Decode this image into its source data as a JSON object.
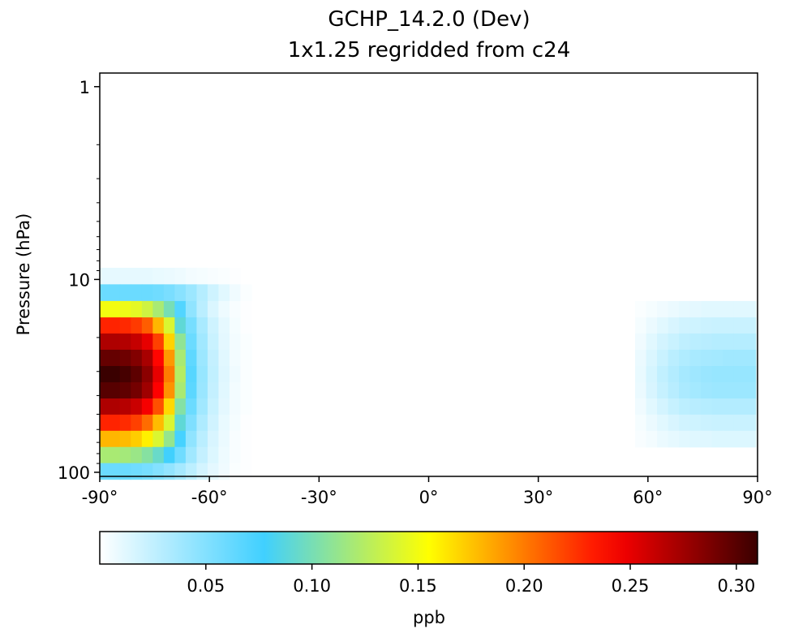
{
  "chart_data": {
    "type": "heatmap",
    "title": "GCHP_14.2.0 (Dev)",
    "subtitle": "1x1.25 regridded from c24",
    "ylabel": "Pressure (hPa)",
    "xlabel": "",
    "y_scale": "log",
    "y_inverted": true,
    "xlim": [
      -90,
      90
    ],
    "ylim": [
      105,
      0.85
    ],
    "x_ticks": [
      -90,
      -60,
      -30,
      0,
      30,
      60,
      90
    ],
    "x_tick_labels": [
      "-90°",
      "-60°",
      "-30°",
      "0°",
      "30°",
      "60°",
      "90°"
    ],
    "y_ticks": [
      1,
      10,
      100
    ],
    "y_tick_labels": [
      "1",
      "10",
      "100"
    ],
    "pressure_levels_hPa": [
      9.6,
      11.7,
      14.3,
      17.3,
      21.0,
      25.5,
      31.0,
      37.6,
      45.6,
      55.3,
      67.1,
      81.4,
      98.7
    ],
    "latitude_centers_deg": [
      -89,
      -86,
      -83,
      -80,
      -77,
      -74,
      -71,
      -68,
      -65,
      -62,
      -59,
      -56,
      -53,
      -50,
      -47,
      -44,
      -41,
      58,
      61,
      64,
      67,
      70,
      73,
      76,
      79,
      82,
      85,
      88
    ],
    "values_ppb": [
      [
        0.01,
        0.01,
        0.01,
        0.01,
        0.01,
        0.009,
        0.008,
        0.007,
        0.005,
        0.004,
        0.003,
        0.002,
        0.001,
        0.0,
        0.0,
        0.0,
        0.0,
        0.0,
        0.0,
        0.0,
        0.0,
        0.0,
        0.0,
        0.0,
        0.0,
        0.0,
        0.0,
        0.0
      ],
      [
        0.06,
        0.06,
        0.06,
        0.06,
        0.06,
        0.058,
        0.054,
        0.048,
        0.04,
        0.03,
        0.02,
        0.012,
        0.006,
        0.002,
        0.0,
        0.0,
        0.0,
        0.0,
        0.0,
        0.0,
        0.0,
        0.0,
        0.0,
        0.0,
        0.0,
        0.0,
        0.0,
        0.0
      ],
      [
        0.15,
        0.15,
        0.148,
        0.144,
        0.135,
        0.12,
        0.1,
        0.07,
        0.045,
        0.028,
        0.015,
        0.007,
        0.003,
        0.001,
        0.0,
        0.0,
        0.0,
        0.002,
        0.004,
        0.006,
        0.008,
        0.01,
        0.011,
        0.012,
        0.012,
        0.012,
        0.012,
        0.012
      ],
      [
        0.23,
        0.23,
        0.228,
        0.222,
        0.21,
        0.18,
        0.14,
        0.09,
        0.055,
        0.035,
        0.02,
        0.01,
        0.004,
        0.001,
        0.0,
        0.0,
        0.0,
        0.004,
        0.008,
        0.012,
        0.016,
        0.019,
        0.02,
        0.021,
        0.022,
        0.022,
        0.022,
        0.022
      ],
      [
        0.27,
        0.27,
        0.268,
        0.262,
        0.25,
        0.22,
        0.17,
        0.11,
        0.06,
        0.038,
        0.022,
        0.011,
        0.005,
        0.002,
        0.0,
        0.0,
        0.0,
        0.006,
        0.012,
        0.018,
        0.022,
        0.026,
        0.028,
        0.029,
        0.03,
        0.03,
        0.03,
        0.03
      ],
      [
        0.295,
        0.295,
        0.292,
        0.285,
        0.272,
        0.24,
        0.19,
        0.12,
        0.065,
        0.04,
        0.024,
        0.012,
        0.005,
        0.002,
        0.0,
        0.0,
        0.0,
        0.008,
        0.015,
        0.022,
        0.028,
        0.032,
        0.035,
        0.036,
        0.037,
        0.038,
        0.038,
        0.038
      ],
      [
        0.31,
        0.31,
        0.306,
        0.298,
        0.282,
        0.25,
        0.2,
        0.125,
        0.068,
        0.042,
        0.025,
        0.013,
        0.006,
        0.002,
        0.0,
        0.0,
        0.0,
        0.009,
        0.017,
        0.025,
        0.031,
        0.036,
        0.039,
        0.041,
        0.042,
        0.042,
        0.042,
        0.042
      ],
      [
        0.3,
        0.3,
        0.297,
        0.29,
        0.275,
        0.242,
        0.192,
        0.12,
        0.066,
        0.041,
        0.024,
        0.012,
        0.005,
        0.002,
        0.0,
        0.0,
        0.0,
        0.008,
        0.016,
        0.023,
        0.029,
        0.034,
        0.037,
        0.039,
        0.04,
        0.04,
        0.04,
        0.04
      ],
      [
        0.27,
        0.27,
        0.267,
        0.26,
        0.245,
        0.215,
        0.168,
        0.105,
        0.06,
        0.038,
        0.022,
        0.011,
        0.005,
        0.002,
        0.0,
        0.0,
        0.0,
        0.006,
        0.012,
        0.018,
        0.023,
        0.027,
        0.029,
        0.03,
        0.031,
        0.031,
        0.031,
        0.031
      ],
      [
        0.23,
        0.23,
        0.227,
        0.22,
        0.205,
        0.178,
        0.14,
        0.09,
        0.052,
        0.033,
        0.019,
        0.009,
        0.004,
        0.001,
        0.0,
        0.0,
        0.0,
        0.004,
        0.008,
        0.012,
        0.016,
        0.019,
        0.02,
        0.021,
        0.022,
        0.022,
        0.022,
        0.022
      ],
      [
        0.18,
        0.18,
        0.178,
        0.172,
        0.16,
        0.14,
        0.112,
        0.075,
        0.045,
        0.028,
        0.016,
        0.008,
        0.003,
        0.001,
        0.0,
        0.0,
        0.0,
        0.003,
        0.005,
        0.008,
        0.01,
        0.012,
        0.013,
        0.013,
        0.014,
        0.014,
        0.014,
        0.014
      ],
      [
        0.12,
        0.12,
        0.118,
        0.114,
        0.106,
        0.094,
        0.078,
        0.058,
        0.038,
        0.024,
        0.014,
        0.007,
        0.003,
        0.001,
        0.0,
        0.0,
        0.0,
        0.0,
        0.0,
        0.0,
        0.0,
        0.0,
        0.0,
        0.0,
        0.0,
        0.0,
        0.0,
        0.0
      ],
      [
        0.06,
        0.06,
        0.06,
        0.058,
        0.055,
        0.05,
        0.044,
        0.036,
        0.027,
        0.018,
        0.011,
        0.006,
        0.002,
        0.001,
        0.0,
        0.0,
        0.0,
        0.0,
        0.0,
        0.0,
        0.0,
        0.0,
        0.0,
        0.0,
        0.0,
        0.0,
        0.0,
        0.0
      ]
    ],
    "colorbar": {
      "label": "ppb",
      "range": [
        0,
        0.31
      ],
      "ticks": [
        0.05,
        0.1,
        0.15,
        0.2,
        0.25,
        0.3
      ],
      "tick_labels": [
        "0.05",
        "0.10",
        "0.15",
        "0.20",
        "0.25",
        "0.30"
      ],
      "colormap": [
        [
          0.0,
          "#ffffff"
        ],
        [
          0.25,
          "#40d0ff"
        ],
        [
          0.5,
          "#ffff00"
        ],
        [
          0.78,
          "#ff0000"
        ],
        [
          1.0,
          "#3a0000"
        ]
      ],
      "orientation": "horizontal",
      "placement": "bottom"
    },
    "grid": false
  }
}
